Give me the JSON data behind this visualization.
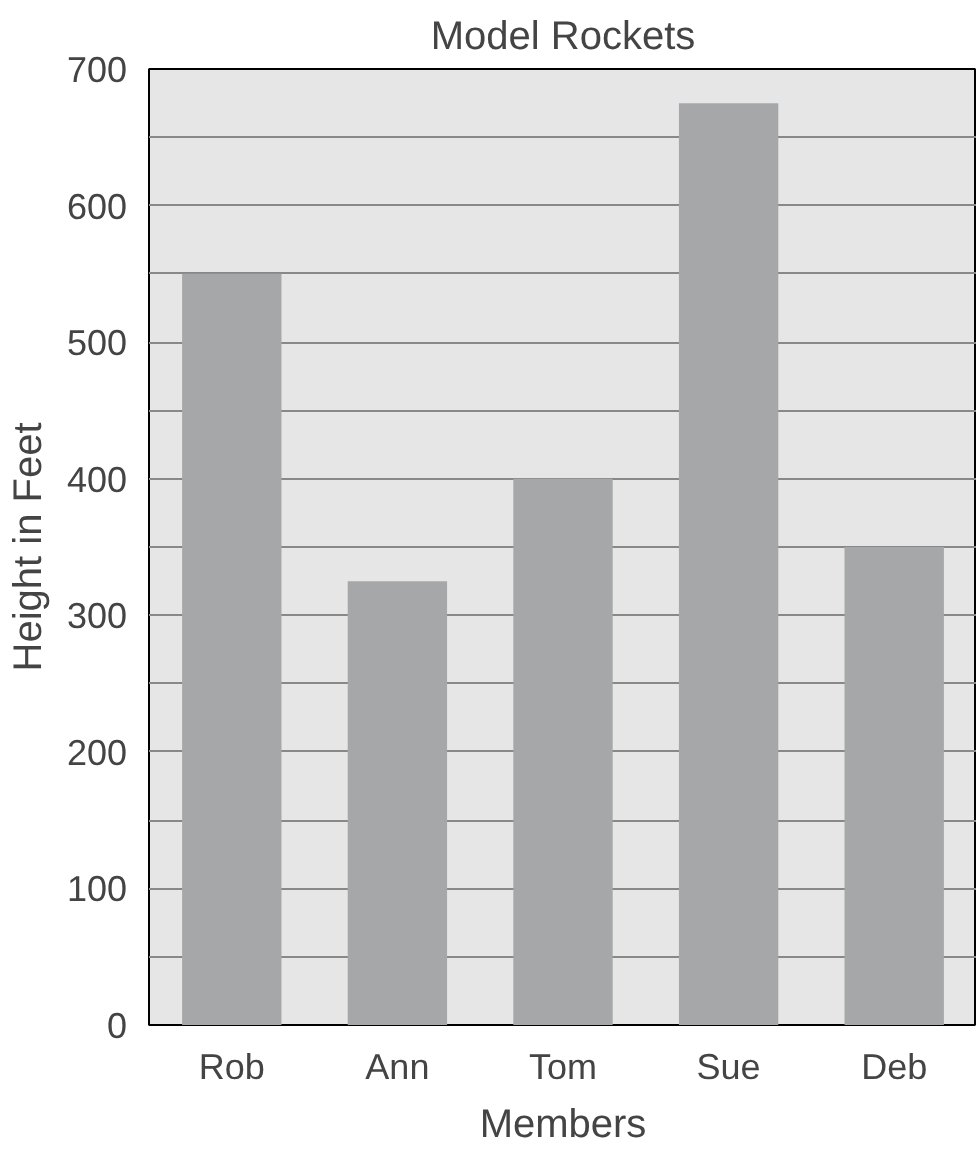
{
  "chart_data": {
    "type": "bar",
    "title": "Model Rockets",
    "xlabel": "Members",
    "ylabel": "Height in Feet",
    "categories": [
      "Rob",
      "Ann",
      "Tom",
      "Sue",
      "Deb"
    ],
    "values": [
      550,
      325,
      400,
      675,
      350
    ],
    "color": "#a6a7a9",
    "ylim": [
      0,
      700
    ],
    "yticks": [
      0,
      {
        "value": 50,
        "label": null
      },
      100,
      {
        "value": 150,
        "label": null
      },
      200,
      {
        "value": 250,
        "label": null
      },
      300,
      {
        "value": 350,
        "label": null
      },
      400,
      {
        "value": 450,
        "label": null
      },
      500,
      {
        "value": 550,
        "label": null
      },
      600,
      {
        "value": 650,
        "label": null
      },
      700
    ],
    "grid": "y"
  }
}
